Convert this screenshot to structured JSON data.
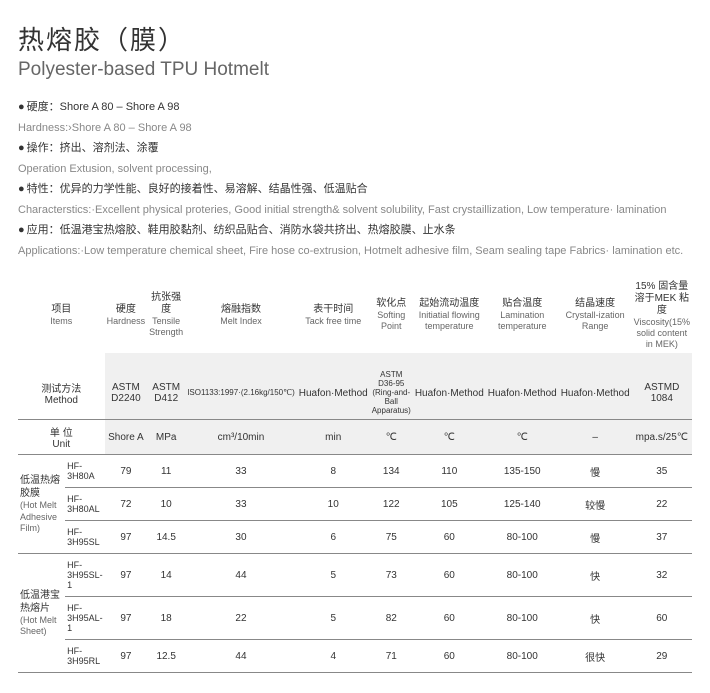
{
  "title": {
    "cn": "热熔胶（膜）",
    "en": "Polyester-based TPU Hotmelt"
  },
  "props": [
    {
      "cn": "硬度：Shore A 80 – Shore A 98",
      "en": "Hardness:›Shore A 80 – Shore A 98"
    },
    {
      "cn": "操作：挤出、溶剂法、涂覆",
      "en": "Operation Extusion, solvent processing,"
    },
    {
      "cn": "特性：优异的力学性能、良好的接着性、易溶解、结晶性强、低温贴合",
      "en": "Characterstics:·Excellent physical proteries, Good initial strength& solvent solubility, Fast crystaillization, Low temperature· lamination"
    },
    {
      "cn": "应用：低温港宝热熔胶、鞋用胶黏剂、纺织品贴合、消防水袋共挤出、热熔胶膜、止水条",
      "en": "Applications:·Low temperature chemical sheet,  Fire hose co-extrusion, Hotmelt adhesive film, Seam sealing tape Fabrics· lamination etc."
    }
  ],
  "cols": [
    {
      "cn": "项目",
      "en": "Items"
    },
    {
      "cn": "硬度",
      "en": "Hardness"
    },
    {
      "cn": "抗张强度",
      "en": "Tensile Strength"
    },
    {
      "cn": "熔融指数",
      "en": "Melt Index"
    },
    {
      "cn": "表干时间",
      "en": "Tack free time"
    },
    {
      "cn": "软化点",
      "en": "Softing Point"
    },
    {
      "cn": "起始流动温度",
      "en": "Initiatial flowing temperature"
    },
    {
      "cn": "贴合温度",
      "en": "Lamination temperature"
    },
    {
      "cn": "结晶速度",
      "en": "Crystall-ization Range"
    },
    {
      "cn": "15% 固含量溶于MEK 粘度",
      "en": "Viscosity(15% solid content in MEK)"
    }
  ],
  "methLabel": {
    "cn": "测试方法",
    "en": "Method"
  },
  "unitLabel": {
    "cn": "单 位",
    "en": "Unit"
  },
  "methods": [
    "ASTM D2240",
    "ASTM D412",
    "ISO1133:1997·(2.16kg/150℃)",
    "Huafon·Method",
    "ASTM D36-95 (Ring-and-Ball Apparatus)",
    "Huafon·Method",
    "Huafon·Method",
    "Huafon·Method",
    "ASTMD 1084"
  ],
  "units": [
    "Shore A",
    "MPa",
    "cm³/10min",
    "min",
    "℃",
    "℃",
    "℃",
    "–",
    "mpa.s/25℃"
  ],
  "cats": [
    {
      "cn": "低温热熔胶膜",
      "en": "(Hot Melt Adhesive Film)",
      "span": 3
    },
    {
      "cn": "低温港宝热熔片",
      "en": "(Hot Melt Sheet)",
      "span": 3
    }
  ],
  "rows": [
    {
      "prod": "HF-3H80A",
      "v": [
        "79",
        "11",
        "33",
        "8",
        "134",
        "110",
        "135-150",
        "慢",
        "35"
      ]
    },
    {
      "prod": "HF-3H80AL",
      "v": [
        "72",
        "10",
        "33",
        "10",
        "122",
        "105",
        "125-140",
        "较慢",
        "22"
      ]
    },
    {
      "prod": "HF-3H95SL",
      "v": [
        "97",
        "14.5",
        "30",
        "6",
        "75",
        "60",
        "80-100",
        "慢",
        "37"
      ]
    },
    {
      "prod": "HF-3H95SL-1",
      "v": [
        "97",
        "14",
        "44",
        "5",
        "73",
        "60",
        "80-100",
        "快",
        "32"
      ]
    },
    {
      "prod": "HF-3H95AL-1",
      "v": [
        "97",
        "18",
        "22",
        "5",
        "82",
        "60",
        "80-100",
        "快",
        "60"
      ]
    },
    {
      "prod": "HF-3H95RL",
      "v": [
        "97",
        "12.5",
        "44",
        "4",
        "71",
        "60",
        "80-100",
        "很快",
        "29"
      ]
    }
  ]
}
